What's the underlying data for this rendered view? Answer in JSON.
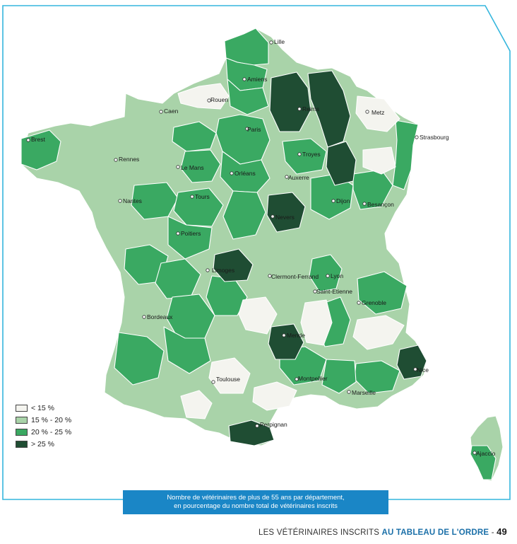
{
  "colors": {
    "lt15": "#f4f4ef",
    "c15_20": "#a9d3a9",
    "c20_25": "#3aa962",
    "gt25": "#1f4d33",
    "frame": "#35b6dd",
    "caption_bg": "#1a86c6"
  },
  "legend": [
    {
      "label": "< 15 %",
      "color": "#f4f4ef"
    },
    {
      "label": "15 % - 20 %",
      "color": "#a9d3a9"
    },
    {
      "label": "20 % - 25 %",
      "color": "#3aa962"
    },
    {
      "label": "> 25 %",
      "color": "#1f4d33"
    }
  ],
  "cities": [
    "Lille",
    "Amiens",
    "Rouen",
    "Reims",
    "Metz",
    "Caen",
    "Paris",
    "Strasbourg",
    "Brest",
    "Troyes",
    "Rennes",
    "Le Mans",
    "Orléans",
    "Auxerre",
    "Nantes",
    "Tours",
    "Dijon",
    "Besançon",
    "Nevers",
    "Poitiers",
    "Limoges",
    "Clermont-Ferrand",
    "Lyon",
    "Saint-Etienne",
    "Grenoble",
    "Bordeaux",
    "Mende",
    "Nice",
    "Toulouse",
    "Montpellier",
    "Marseille",
    "Perpignan",
    "Ajaccio"
  ],
  "caption": {
    "line1": "Nombre de vétérinaires de plus de 55 ans par département,",
    "line2": "en pourcentage du nombre total de vétérinaires inscrits"
  },
  "footer": {
    "prefix": "LES VÉTÉRINAIRES INSCRITS",
    "bold": "AU TABLEAU DE L'ORDRE",
    "dash": "-",
    "page": "49"
  }
}
